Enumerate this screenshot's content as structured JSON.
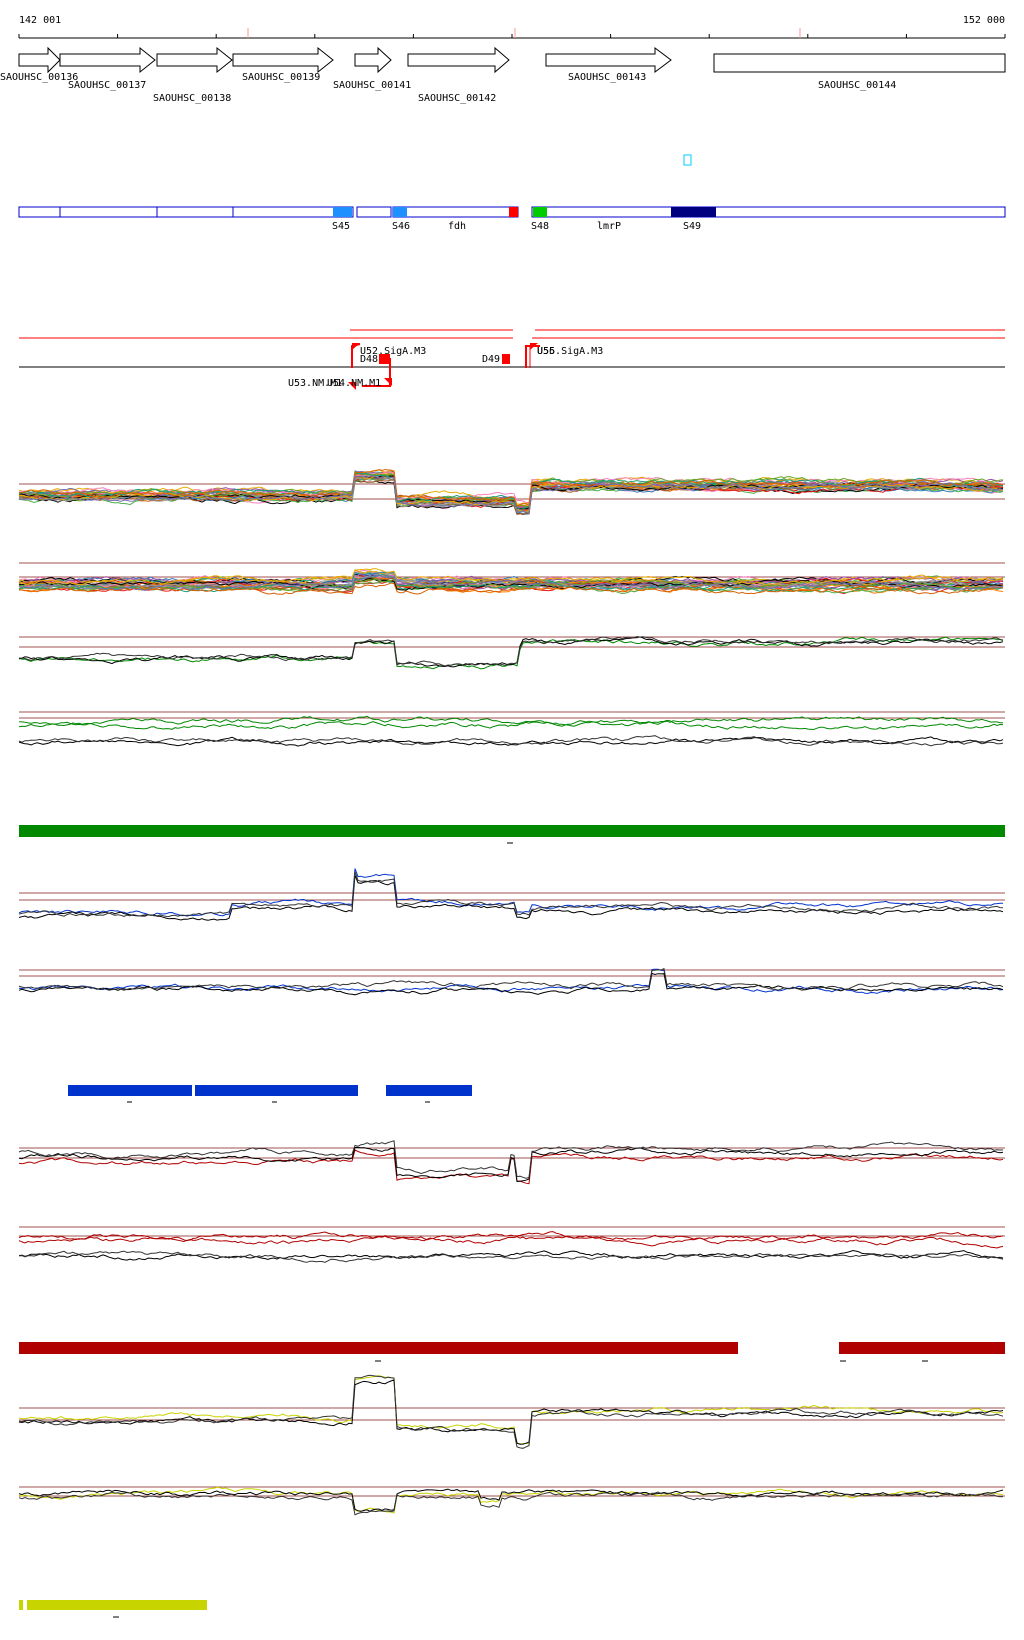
{
  "coords": {
    "start": "142 001",
    "end": "152 000"
  },
  "genes": [
    {
      "id": "SAOUHSC_00136",
      "labelRow": 0
    },
    {
      "id": "SAOUHSC_00137",
      "labelRow": 1
    },
    {
      "id": "SAOUHSC_00138",
      "labelRow": 2
    },
    {
      "id": "SAOUHSC_00139",
      "labelRow": 0
    },
    {
      "id": "SAOUHSC_00141",
      "labelRow": 1
    },
    {
      "id": "SAOUHSC_00142",
      "labelRow": 2
    },
    {
      "id": "SAOUHSC_00143",
      "labelRow": 0
    },
    {
      "id": "SAOUHSC_00144",
      "labelRow": 1
    }
  ],
  "segments": [
    {
      "label": "S45",
      "color": "#1e90ff"
    },
    {
      "label": "S46",
      "color": "#1e90ff"
    },
    {
      "label": "fdh",
      "color": ""
    },
    {
      "label": "S48",
      "color": "#00cc00"
    },
    {
      "label": "lmrP",
      "color": ""
    },
    {
      "label": "S49",
      "color": "#000080"
    }
  ],
  "annotations": [
    {
      "label": "U52.SigA.M3"
    },
    {
      "label": "D48"
    },
    {
      "label": "D49"
    },
    {
      "label": "U55.SigA.M3"
    },
    {
      "label": "U56"
    },
    {
      "label": "U53.NM.M1"
    },
    {
      "label": "U54.NM.M1"
    }
  ],
  "colors": {
    "gene_outline": "#000000",
    "segment_outline": "#0000cc",
    "annotation": "#ff0000",
    "green_track": "#008800",
    "blue_track": "#0033cc",
    "red_track": "#b00000",
    "yellow_track": "#c8d400",
    "reference_line": "#a05050"
  },
  "bar_tracks": [
    {
      "name": "green-expression-bar",
      "color": "#008800"
    },
    {
      "name": "blue-expression-bar",
      "color": "#0033cc"
    },
    {
      "name": "red-expression-bar",
      "color": "#b00000"
    },
    {
      "name": "yellow-expression-bar",
      "color": "#c8d400"
    }
  ]
}
